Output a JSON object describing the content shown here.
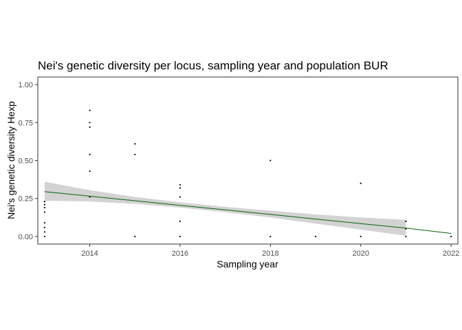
{
  "chart_data": {
    "type": "scatter",
    "title": "Nei's genetic diversity per locus, sampling year and population BUR",
    "xlabel": "Sampling year",
    "ylabel": "Nei's genetic diversity Hexp",
    "xlim": [
      2012.85,
      2022.15
    ],
    "ylim": [
      -0.05,
      1.05
    ],
    "x_ticks": [
      2014,
      2016,
      2018,
      2020,
      2022
    ],
    "y_ticks": [
      0.0,
      0.25,
      0.5,
      0.75,
      1.0
    ],
    "x_tick_labels": [
      "2014",
      "2016",
      "2018",
      "2020",
      "2022"
    ],
    "y_tick_labels": [
      "0.00",
      "0.25",
      "0.50",
      "0.75",
      "1.00"
    ],
    "grid": false,
    "legend": "none",
    "colors": {
      "points": "#000000",
      "trend": "#006400",
      "band": "#d3d3d3"
    },
    "points": [
      {
        "x": 2013,
        "y": 0.0
      },
      {
        "x": 2013,
        "y": 0.03
      },
      {
        "x": 2013,
        "y": 0.06
      },
      {
        "x": 2013,
        "y": 0.09
      },
      {
        "x": 2013,
        "y": 0.16
      },
      {
        "x": 2013,
        "y": 0.19
      },
      {
        "x": 2013,
        "y": 0.21
      },
      {
        "x": 2013,
        "y": 0.23
      },
      {
        "x": 2014,
        "y": 0.26
      },
      {
        "x": 2014,
        "y": 0.43
      },
      {
        "x": 2014,
        "y": 0.54
      },
      {
        "x": 2014,
        "y": 0.72
      },
      {
        "x": 2014,
        "y": 0.75
      },
      {
        "x": 2014,
        "y": 0.83
      },
      {
        "x": 2015,
        "y": 0.0
      },
      {
        "x": 2015,
        "y": 0.54
      },
      {
        "x": 2015,
        "y": 0.61
      },
      {
        "x": 2016,
        "y": 0.0
      },
      {
        "x": 2016,
        "y": 0.1
      },
      {
        "x": 2016,
        "y": 0.26
      },
      {
        "x": 2016,
        "y": 0.32
      },
      {
        "x": 2016,
        "y": 0.34
      },
      {
        "x": 2018,
        "y": 0.0
      },
      {
        "x": 2018,
        "y": 0.5
      },
      {
        "x": 2019,
        "y": 0.0
      },
      {
        "x": 2020,
        "y": 0.0
      },
      {
        "x": 2020,
        "y": 0.35
      },
      {
        "x": 2021,
        "y": 0.0
      },
      {
        "x": 2021,
        "y": 0.05
      },
      {
        "x": 2021,
        "y": 0.1
      },
      {
        "x": 2022,
        "y": 0.0
      }
    ],
    "trend_line": {
      "x": [
        2013,
        2014,
        2015,
        2016,
        2017,
        2018,
        2019,
        2020,
        2021,
        2022
      ],
      "y": [
        0.295,
        0.265,
        0.235,
        0.205,
        0.175,
        0.145,
        0.115,
        0.085,
        0.055,
        0.02
      ]
    },
    "confidence_band": {
      "x": [
        2013,
        2014,
        2015,
        2016,
        2017,
        2018,
        2019,
        2020,
        2021
      ],
      "lower": [
        0.235,
        0.23,
        0.215,
        0.19,
        0.16,
        0.125,
        0.085,
        0.045,
        0.005
      ],
      "upper": [
        0.36,
        0.305,
        0.26,
        0.225,
        0.195,
        0.17,
        0.145,
        0.125,
        0.11
      ]
    }
  }
}
